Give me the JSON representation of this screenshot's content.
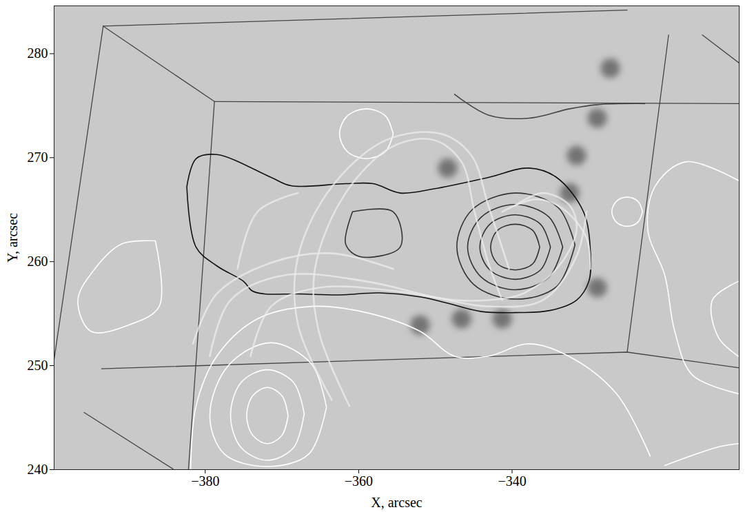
{
  "chart_data": {
    "type": "contour",
    "xlabel": "X, arcsec",
    "ylabel": "Y, arcsec",
    "xlim": [
      -399.7,
      -310.4
    ],
    "ylim": [
      240,
      284.6
    ],
    "xticks": [
      -380,
      -360,
      -340
    ],
    "yticks": [
      240,
      250,
      260,
      270,
      280
    ],
    "grid": false,
    "series": [
      {
        "type": "spot",
        "color": "#3a3a3a",
        "values": [
          [
            -348.4,
            269.0
          ],
          [
            -346.6,
            254.5
          ],
          [
            -341.3,
            254.5
          ],
          [
            -352.0,
            253.9
          ],
          [
            -332.5,
            266.6
          ],
          [
            -331.6,
            270.2
          ],
          [
            -328.9,
            257.5
          ],
          [
            -328.9,
            273.8
          ],
          [
            -327.2,
            278.6
          ]
        ]
      },
      {
        "type": "edge",
        "color": "#444444",
        "values": [
          [
            -393.3,
            282.65
          ],
          [
            -378.8,
            275.4
          ]
        ]
      },
      {
        "type": "edge",
        "color": "#444444",
        "values": [
          [
            -393.3,
            282.65
          ],
          [
            -325.0,
            284.2
          ]
        ]
      },
      {
        "type": "edge",
        "color": "#444444",
        "values": [
          [
            -393.3,
            282.65
          ],
          [
            -399.7,
            250.6
          ]
        ]
      },
      {
        "type": "edge",
        "color": "#444444",
        "values": [
          [
            -378.8,
            275.4
          ],
          [
            -310.4,
            275.2
          ]
        ]
      },
      {
        "type": "edge",
        "color": "#444444",
        "values": [
          [
            -378.8,
            275.4
          ],
          [
            -382.2,
            239.9
          ]
        ]
      },
      {
        "type": "edge",
        "color": "#444444",
        "values": [
          [
            -319.6,
            281.8
          ],
          [
            -325.0,
            251.3
          ]
        ]
      },
      {
        "type": "edge",
        "color": "#444444",
        "values": [
          [
            -393.5,
            249.7
          ],
          [
            -325.0,
            251.3
          ],
          [
            -310.5,
            249.8
          ]
        ]
      },
      {
        "type": "edge",
        "color": "#444444",
        "values": [
          [
            -315.2,
            281.8
          ],
          [
            -310.4,
            279.1
          ]
        ]
      },
      {
        "type": "edge",
        "color": "#444444",
        "values": [
          [
            -395.8,
            245.5
          ],
          [
            -384.2,
            240.06
          ]
        ]
      },
      {
        "type": "contour",
        "color": "#111111",
        "values": [
          [
            -382.4,
            267.2
          ],
          [
            -381.2,
            269.9
          ],
          [
            -378.5,
            270.3
          ],
          [
            -371.4,
            268.1
          ],
          [
            -368.8,
            267.3
          ],
          [
            -361.7,
            267.5
          ],
          [
            -358.1,
            267.5
          ],
          [
            -354.6,
            266.6
          ],
          [
            -350.2,
            267.0
          ],
          [
            -343.1,
            268.1
          ],
          [
            -337.8,
            269.0
          ],
          [
            -334.2,
            268.1
          ],
          [
            -330.7,
            264.8
          ],
          [
            -329.8,
            261.1
          ],
          [
            -330.0,
            258.1
          ],
          [
            -331.6,
            256.3
          ],
          [
            -335.1,
            255.3
          ],
          [
            -339.6,
            255.1
          ],
          [
            -344.0,
            255.2
          ],
          [
            -348.4,
            256.0
          ],
          [
            -351.9,
            256.6
          ],
          [
            -357.3,
            257.0
          ],
          [
            -362.6,
            256.8
          ],
          [
            -367.9,
            256.9
          ],
          [
            -372.3,
            256.9
          ],
          [
            -373.9,
            257.2
          ],
          [
            -375.0,
            258.1
          ],
          [
            -378.5,
            259.6
          ],
          [
            -381.2,
            261.4
          ],
          [
            -382.4,
            267.2
          ]
        ]
      },
      {
        "type": "contour",
        "color": "#333333",
        "values": [
          [
            -360.8,
            264.8
          ],
          [
            -355.5,
            264.8
          ],
          [
            -354.6,
            261.4
          ],
          [
            -359.9,
            260.5
          ],
          [
            -361.7,
            261.7
          ],
          [
            -360.8,
            264.8
          ]
        ]
      },
      {
        "type": "contour",
        "color": "#333333",
        "values": [
          [
            -336.4,
            261.4
          ],
          [
            -337.3,
            263.0
          ],
          [
            -339.6,
            263.6
          ],
          [
            -341.9,
            263.0
          ],
          [
            -342.8,
            261.4
          ],
          [
            -341.9,
            259.8
          ],
          [
            -339.6,
            259.2
          ],
          [
            -337.3,
            259.8
          ],
          [
            -336.4,
            261.4
          ]
        ]
      },
      {
        "type": "contour",
        "color": "#333333",
        "values": [
          [
            -335.0,
            261.4
          ],
          [
            -336.3,
            263.6
          ],
          [
            -339.6,
            264.5
          ],
          [
            -342.9,
            263.6
          ],
          [
            -344.2,
            261.4
          ],
          [
            -342.9,
            259.2
          ],
          [
            -339.6,
            258.3
          ],
          [
            -336.3,
            259.2
          ],
          [
            -335.0,
            261.4
          ]
        ]
      },
      {
        "type": "contour",
        "color": "#333333",
        "values": [
          [
            -333.4,
            261.4
          ],
          [
            -335.2,
            264.3
          ],
          [
            -339.6,
            265.5
          ],
          [
            -344.0,
            264.3
          ],
          [
            -345.8,
            261.4
          ],
          [
            -344.0,
            258.5
          ],
          [
            -339.6,
            257.3
          ],
          [
            -335.2,
            258.5
          ],
          [
            -333.4,
            261.4
          ]
        ]
      },
      {
        "type": "contour",
        "color": "#333333",
        "values": [
          [
            -331.8,
            261.6
          ],
          [
            -334.0,
            265.2
          ],
          [
            -339.6,
            266.6
          ],
          [
            -345.2,
            265.0
          ],
          [
            -347.2,
            261.4
          ],
          [
            -345.0,
            257.8
          ],
          [
            -339.6,
            256.4
          ],
          [
            -334.2,
            257.6
          ],
          [
            -331.8,
            261.6
          ]
        ]
      },
      {
        "type": "contour",
        "color": "#444444",
        "values": [
          [
            -347.5,
            276.1
          ],
          [
            -343.1,
            274.1
          ],
          [
            -337.8,
            273.8
          ],
          [
            -332.5,
            274.7
          ],
          [
            -328.9,
            275.1
          ],
          [
            -322.7,
            275.2
          ]
        ]
      },
      {
        "type": "contour",
        "color": "#ffffff",
        "values": [
          [
            -369.2,
            245.2
          ],
          [
            -370.0,
            247.1
          ],
          [
            -371.9,
            247.9
          ],
          [
            -373.8,
            247.1
          ],
          [
            -374.6,
            245.2
          ],
          [
            -373.8,
            243.3
          ],
          [
            -371.9,
            242.5
          ],
          [
            -370.0,
            243.3
          ],
          [
            -369.2,
            245.2
          ]
        ]
      },
      {
        "type": "contour",
        "color": "#ffffff",
        "values": [
          [
            -367.1,
            245.4
          ],
          [
            -368.5,
            248.4
          ],
          [
            -371.9,
            249.6
          ],
          [
            -375.3,
            248.4
          ],
          [
            -376.7,
            245.2
          ],
          [
            -375.3,
            242.1
          ],
          [
            -371.9,
            240.9
          ],
          [
            -368.5,
            242.1
          ],
          [
            -367.1,
            245.4
          ]
        ]
      },
      {
        "type": "contour",
        "color": "#ffffff",
        "values": [
          [
            -364.2,
            246.0
          ],
          [
            -366.2,
            250.2
          ],
          [
            -371.5,
            252.2
          ],
          [
            -377.0,
            250.0
          ],
          [
            -379.4,
            245.2
          ],
          [
            -377.5,
            241.5
          ],
          [
            -371.9,
            240.3
          ],
          [
            -366.5,
            241.5
          ],
          [
            -364.2,
            246.0
          ]
        ]
      },
      {
        "type": "contour",
        "color": "#ffffff",
        "values": [
          [
            -381.9,
            240.1
          ],
          [
            -381.2,
            246.1
          ],
          [
            -378.5,
            250.9
          ],
          [
            -373.2,
            254.5
          ],
          [
            -366.1,
            255.7
          ],
          [
            -359.0,
            255.1
          ],
          [
            -352.0,
            253.3
          ],
          [
            -347.5,
            250.9
          ],
          [
            -343.1,
            250.9
          ],
          [
            -337.8,
            252.1
          ],
          [
            -332.6,
            250.9
          ],
          [
            -326.4,
            247.3
          ],
          [
            -322.0,
            241.3
          ]
        ]
      },
      {
        "type": "contour",
        "color": "#ffffff",
        "values": [
          [
            -386.5,
            262.0
          ],
          [
            -390.9,
            261.7
          ],
          [
            -394.4,
            259.3
          ],
          [
            -396.6,
            256.3
          ],
          [
            -394.9,
            253.3
          ],
          [
            -390.0,
            253.9
          ],
          [
            -386.0,
            255.7
          ],
          [
            -386.5,
            262.0
          ]
        ]
      },
      {
        "type": "contour",
        "color": "#ffffff",
        "values": [
          [
            -355.5,
            272.3
          ],
          [
            -356.5,
            274.0
          ],
          [
            -359.0,
            274.7
          ],
          [
            -361.5,
            274.0
          ],
          [
            -362.5,
            272.3
          ],
          [
            -361.5,
            270.6
          ],
          [
            -359.0,
            269.9
          ],
          [
            -356.5,
            270.6
          ],
          [
            -355.5,
            272.3
          ]
        ]
      },
      {
        "type": "contour",
        "color": "#ffffff",
        "values": [
          [
            -323.0,
            264.8
          ],
          [
            -323.6,
            265.8
          ],
          [
            -325.0,
            266.2
          ],
          [
            -326.4,
            265.8
          ],
          [
            -327.0,
            264.8
          ],
          [
            -326.4,
            263.8
          ],
          [
            -325.0,
            263.4
          ],
          [
            -323.6,
            263.8
          ],
          [
            -323.0,
            264.8
          ]
        ]
      },
      {
        "type": "contour",
        "color": "#ffffff",
        "values": [
          [
            -310.5,
            267.8
          ],
          [
            -317.4,
            269.6
          ],
          [
            -321.4,
            267.2
          ],
          [
            -322.3,
            263.0
          ],
          [
            -320.1,
            258.7
          ],
          [
            -318.8,
            253.3
          ],
          [
            -316.5,
            249.1
          ],
          [
            -310.5,
            247.3
          ]
        ]
      },
      {
        "type": "contour",
        "color": "#ffffff",
        "values": [
          [
            -310.5,
            258.1
          ],
          [
            -313.9,
            256.3
          ],
          [
            -313.1,
            252.7
          ],
          [
            -310.5,
            250.9
          ]
        ]
      },
      {
        "type": "contour",
        "color": "#ffffff",
        "values": [
          [
            -320.1,
            240.4
          ],
          [
            -313.0,
            242.2
          ],
          [
            -310.5,
            242.5
          ]
        ]
      },
      {
        "type": "field_line",
        "color": "#ececec",
        "values": [
          [
            -361.2,
            246.1
          ],
          [
            -365.2,
            253.3
          ],
          [
            -365.7,
            259.3
          ],
          [
            -361.7,
            266.6
          ],
          [
            -355.5,
            271.1
          ],
          [
            -350.2,
            271.7
          ],
          [
            -346.6,
            269.6
          ],
          [
            -344.9,
            264.8
          ],
          [
            -343.1,
            259.9
          ],
          [
            -341.3,
            256.3
          ]
        ]
      },
      {
        "type": "field_line",
        "color": "#ececec",
        "values": [
          [
            -363.5,
            246.7
          ],
          [
            -367.9,
            253.9
          ],
          [
            -367.9,
            260.5
          ],
          [
            -363.5,
            267.2
          ],
          [
            -356.4,
            271.7
          ],
          [
            -349.3,
            272.3
          ],
          [
            -345.3,
            270.2
          ],
          [
            -343.1,
            265.4
          ],
          [
            -340.4,
            259.3
          ]
        ]
      },
      {
        "type": "field_line",
        "color": "#ececec",
        "values": [
          [
            -374.1,
            250.9
          ],
          [
            -371.4,
            255.7
          ],
          [
            -365.2,
            257.5
          ],
          [
            -355.5,
            257.2
          ],
          [
            -347.5,
            256.3
          ],
          [
            -343.1,
            256.3
          ],
          [
            -338.7,
            256.9
          ],
          [
            -334.2,
            259.3
          ],
          [
            -331.6,
            263.0
          ],
          [
            -332.5,
            265.4
          ],
          [
            -336.0,
            266.6
          ],
          [
            -339.6,
            265.4
          ]
        ]
      },
      {
        "type": "field_line",
        "color": "#ececec",
        "values": [
          [
            -379.4,
            250.9
          ],
          [
            -376.7,
            256.3
          ],
          [
            -369.6,
            258.7
          ],
          [
            -359.0,
            258.1
          ],
          [
            -350.2,
            256.6
          ],
          [
            -343.1,
            255.7
          ],
          [
            -336.0,
            256.3
          ],
          [
            -331.6,
            260.5
          ],
          [
            -330.3,
            264.8
          ]
        ]
      },
      {
        "type": "field_line",
        "color": "#ececec",
        "values": [
          [
            -375.8,
            259.3
          ],
          [
            -373.2,
            264.8
          ],
          [
            -367.9,
            266.6
          ]
        ]
      },
      {
        "type": "field_line",
        "color": "#ececec",
        "values": [
          [
            -381.6,
            252.1
          ],
          [
            -378.5,
            256.9
          ],
          [
            -371.4,
            259.9
          ],
          [
            -363.5,
            260.8
          ],
          [
            -355.5,
            259.3
          ]
        ]
      },
      {
        "type": "field_line",
        "color": "#ececec",
        "values": [
          [
            -341.3,
            264.8
          ],
          [
            -336.9,
            266.0
          ],
          [
            -333.4,
            265.1
          ],
          [
            -330.3,
            262.3
          ],
          [
            -329.8,
            259.3
          ]
        ]
      }
    ]
  }
}
